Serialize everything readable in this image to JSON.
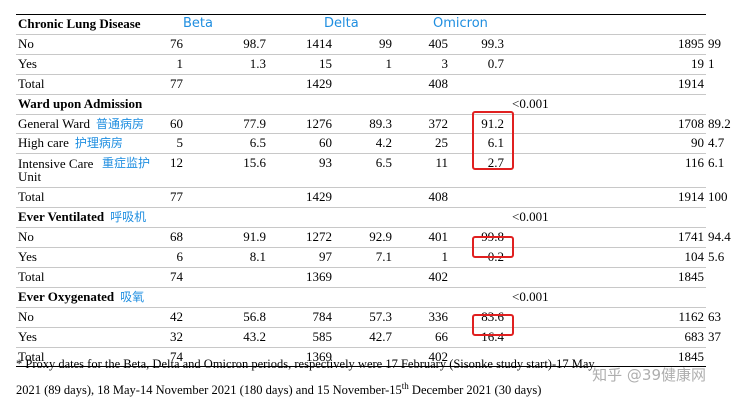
{
  "headers": {
    "beta": "Beta",
    "delta": "Delta",
    "omicron": "Omicron"
  },
  "rows": [
    {
      "type": "section",
      "label": "Chronic Lung Disease",
      "cols": [
        "",
        "",
        "",
        "",
        "",
        "",
        "",
        ""
      ]
    },
    {
      "type": "data",
      "label": "No",
      "cols": [
        "76",
        "98.7",
        "1414",
        "99",
        "405",
        "99.3",
        "1895",
        "99"
      ]
    },
    {
      "type": "data",
      "label": "Yes",
      "cols": [
        "1",
        "1.3",
        "15",
        "1",
        "3",
        "0.7",
        "19",
        "1"
      ]
    },
    {
      "type": "data",
      "label": "Total",
      "cols": [
        "77",
        "",
        "1429",
        "",
        "408",
        "",
        "1914",
        ""
      ]
    },
    {
      "type": "section",
      "label": "Ward upon Admission",
      "p": "<0.001",
      "cols": [
        "",
        "",
        "",
        "",
        "",
        "",
        "",
        ""
      ]
    },
    {
      "type": "data",
      "label": "General Ward",
      "cn": "普通病房",
      "cols": [
        "60",
        "77.9",
        "1276",
        "89.3",
        "372",
        "91.2",
        "1708",
        "89.2"
      ]
    },
    {
      "type": "data",
      "label": "High care",
      "cn": "护理病房",
      "cols": [
        "5",
        "6.5",
        "60",
        "4.2",
        "25",
        "6.1",
        "90",
        "4.7"
      ]
    },
    {
      "type": "data",
      "label": "Intensive Care Unit",
      "cn": "重症监护",
      "tall": true,
      "cols": [
        "12",
        "15.6",
        "93",
        "6.5",
        "11",
        "2.7",
        "116",
        "6.1"
      ]
    },
    {
      "type": "data",
      "label": "Total",
      "cols": [
        "77",
        "",
        "1429",
        "",
        "408",
        "",
        "1914",
        "100"
      ]
    },
    {
      "type": "section",
      "label": "Ever Ventilated",
      "cn": "呼吸机",
      "p": "<0.001",
      "cols": [
        "",
        "",
        "",
        "",
        "",
        "",
        "",
        ""
      ]
    },
    {
      "type": "data",
      "label": "No",
      "cols": [
        "68",
        "91.9",
        "1272",
        "92.9",
        "401",
        "99.8",
        "1741",
        "94.4"
      ]
    },
    {
      "type": "data",
      "label": "Yes",
      "cols": [
        "6",
        "8.1",
        "97",
        "7.1",
        "1",
        "0.2",
        "104",
        "5.6"
      ]
    },
    {
      "type": "data",
      "label": "Total",
      "cols": [
        "74",
        "",
        "1369",
        "",
        "402",
        "",
        "1845",
        ""
      ]
    },
    {
      "type": "section",
      "label": "Ever Oxygenated",
      "cn": "吸氧",
      "p": "<0.001",
      "cols": [
        "",
        "",
        "",
        "",
        "",
        "",
        "",
        ""
      ]
    },
    {
      "type": "data",
      "label": "No",
      "cols": [
        "42",
        "56.8",
        "784",
        "57.3",
        "336",
        "83.6",
        "1162",
        "63"
      ]
    },
    {
      "type": "data",
      "label": "Yes",
      "cols": [
        "32",
        "43.2",
        "585",
        "42.7",
        "66",
        "16.4",
        "683",
        "37"
      ]
    },
    {
      "type": "data",
      "label": "Total",
      "cols": [
        "74",
        "",
        "1369",
        "",
        "402",
        "",
        "1845",
        ""
      ]
    }
  ],
  "footnote": {
    "line1": "* Proxy dates for the Beta, Delta and Omicron periods, respectively were 17 February  (Sisonke study start)-17 May",
    "line2a": "2021 (89 days), 18 May-14 November 2021 (180 days) and 15 November-15",
    "line2sup": "th",
    "line2b": " December 2021 (30 days)"
  },
  "watermark": "知乎 @39健康网"
}
